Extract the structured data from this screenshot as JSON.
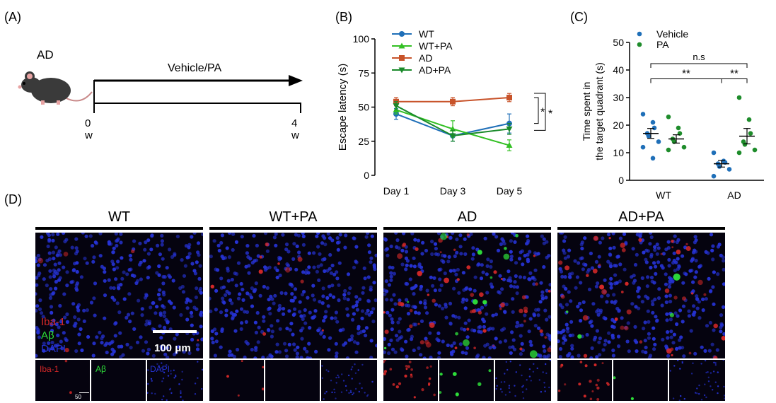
{
  "panel_labels": {
    "a": "(A)",
    "b": "(B)",
    "c": "(C)",
    "d": "(D)"
  },
  "panel_a": {
    "model": "AD",
    "treatment": "Vehicle/PA",
    "start": "0 w",
    "end": "4 w",
    "colors": {
      "mouse": "#3a3a3a",
      "ear": "#e8a3a3",
      "tail": "#c98a8a"
    }
  },
  "chart_data": [
    {
      "type": "line",
      "panel": "B",
      "categories": [
        "Day 1",
        "Day 3",
        "Day 5"
      ],
      "ylabel": "Escape latency (s)",
      "xlabel": "",
      "ylim": [
        0,
        100
      ],
      "yticks": [
        "0",
        "25",
        "50",
        "75",
        "100"
      ],
      "legend_position": "top-left",
      "series": [
        {
          "name": "WT",
          "color": "#1f6fb8",
          "marker": "circle",
          "values": [
            45,
            29,
            38
          ],
          "err": [
            4,
            4,
            7
          ]
        },
        {
          "name": "WT+PA",
          "color": "#33c024",
          "marker": "triangle-up",
          "values": [
            48,
            34,
            22
          ],
          "err": [
            3,
            6,
            4
          ]
        },
        {
          "name": "AD",
          "color": "#c8532a",
          "marker": "square",
          "values": [
            54,
            54,
            57
          ],
          "err": [
            3,
            3,
            3
          ]
        },
        {
          "name": "AD+PA",
          "color": "#1a8a2a",
          "marker": "triangle-down",
          "values": [
            51,
            29,
            34
          ],
          "err": [
            3,
            4,
            4
          ]
        }
      ],
      "significance": [
        "*",
        "*"
      ]
    },
    {
      "type": "scatter",
      "panel": "C",
      "categories": [
        "WT",
        "AD"
      ],
      "ylabel_lines": [
        "Time spent in",
        "the target quadrant (s)"
      ],
      "ylim": [
        0,
        50
      ],
      "yticks": [
        "0",
        "10",
        "20",
        "30",
        "40",
        "50"
      ],
      "legend_position": "top-left",
      "series": [
        {
          "name": "Vehicle",
          "color": "#1f6fb8",
          "groups": [
            {
              "category": "WT",
              "points": [
                24,
                21,
                19,
                17,
                16,
                14,
                12,
                8
              ],
              "mean": 17,
              "sem": 1.8
            },
            {
              "category": "AD",
              "points": [
                10,
                7,
                6.5,
                6,
                5,
                4,
                1.5
              ],
              "mean": 6,
              "sem": 1.2
            }
          ]
        },
        {
          "name": "PA",
          "color": "#1e8c2b",
          "groups": [
            {
              "category": "WT",
              "points": [
                23,
                19,
                17,
                15,
                14,
                12,
                11
              ],
              "mean": 15,
              "sem": 1.5
            },
            {
              "category": "AD",
              "points": [
                30,
                22,
                17,
                14,
                13,
                11,
                10
              ],
              "mean": 16,
              "sem": 2.8
            }
          ]
        }
      ],
      "comparisons": [
        {
          "label": "n.s",
          "from": "WT-Vehicle",
          "to": "AD-PA"
        },
        {
          "label": "**",
          "from": "WT-Vehicle",
          "to": "AD-Vehicle"
        },
        {
          "label": "**",
          "from": "AD-Vehicle",
          "to": "AD-PA"
        }
      ]
    }
  ],
  "panel_d": {
    "groups": [
      "WT",
      "WT+PA",
      "AD",
      "AD+PA"
    ],
    "channels": {
      "iba": "Iba-1",
      "abeta": "Aβ",
      "dapi": "DAPI"
    },
    "scalebar_main": "100 μm",
    "scalebar_small": "50 μm",
    "colors": {
      "dapi": "#2633d6",
      "iba": "#d42828",
      "abeta": "#2ee03a",
      "background": "#05030f"
    },
    "intensity": {
      "iba": [
        0.05,
        0.15,
        0.9,
        0.7
      ],
      "abeta": [
        0.0,
        0.02,
        0.7,
        0.2
      ]
    }
  }
}
